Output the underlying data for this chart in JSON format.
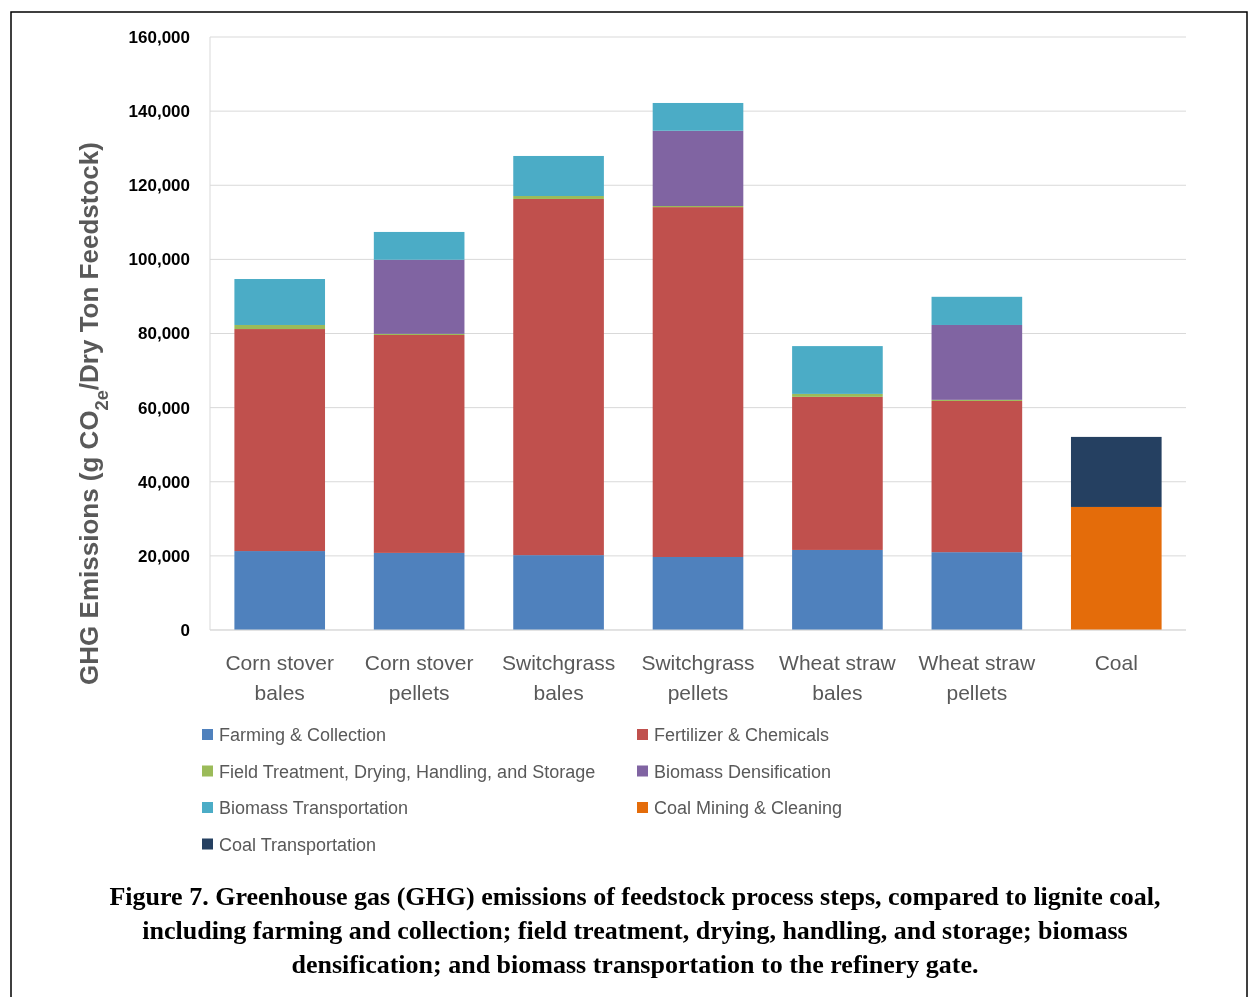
{
  "chart_data": {
    "type": "bar",
    "stacked": true,
    "categories": [
      "Corn stover bales",
      "Corn stover pellets",
      "Switchgrass bales",
      "Switchgrass pellets",
      "Wheat straw bales",
      "Wheat straw pellets",
      "Coal"
    ],
    "ylabel": "GHG Emissions (g CO$_{2e}$/Dry Ton Feedstock)",
    "ylim": [
      0,
      160000
    ],
    "yticks": [
      {
        "value": 0,
        "label": "0"
      },
      {
        "value": 20000,
        "label": "20,000"
      },
      {
        "value": 40000,
        "label": "40,000"
      },
      {
        "value": 60000,
        "label": "60,000"
      },
      {
        "value": 80000,
        "label": "80,000"
      },
      {
        "value": 100000,
        "label": "100,000"
      },
      {
        "value": 120000,
        "label": "120,000"
      },
      {
        "value": 140000,
        "label": "140,000"
      },
      {
        "value": 160000,
        "label": "160,000"
      }
    ],
    "grid": "y",
    "legend": "bottom",
    "series": [
      {
        "name": "Farming & Collection",
        "color": "#4f81bd",
        "values": [
          21300,
          20800,
          20200,
          19700,
          21600,
          21000,
          0
        ]
      },
      {
        "name": "Fertilizer & Chemicals",
        "color": "#c0504d",
        "values": [
          59900,
          58800,
          96100,
          94400,
          41300,
          40800,
          0
        ]
      },
      {
        "name": "Field Treatment, Drying, Handling, and Storage",
        "color": "#9bbb59",
        "values": [
          1100,
          300,
          800,
          300,
          800,
          300,
          0
        ]
      },
      {
        "name": "Biomass Densification",
        "color": "#8064a2",
        "values": [
          0,
          20000,
          0,
          20300,
          0,
          20200,
          0
        ]
      },
      {
        "name": "Biomass Transportation",
        "color": "#4bacc6",
        "values": [
          12400,
          7500,
          10800,
          7500,
          12900,
          7600,
          0
        ]
      },
      {
        "name": "Coal Mining & Cleaning",
        "color": "#e46c0a",
        "values": [
          0,
          0,
          0,
          0,
          0,
          0,
          33200
        ]
      },
      {
        "name": "Coal Transportation",
        "color": "#254061",
        "values": [
          0,
          0,
          0,
          0,
          0,
          0,
          18900
        ]
      }
    ],
    "annotations": [
      "Figure 7. Greenhouse gas (GHG) emissions of feedstock process steps, compared to lignite coal, including farming and collection; field treatment, drying, handling, and storage; biomass densification; and biomass transportation to the refinery gate."
    ]
  }
}
